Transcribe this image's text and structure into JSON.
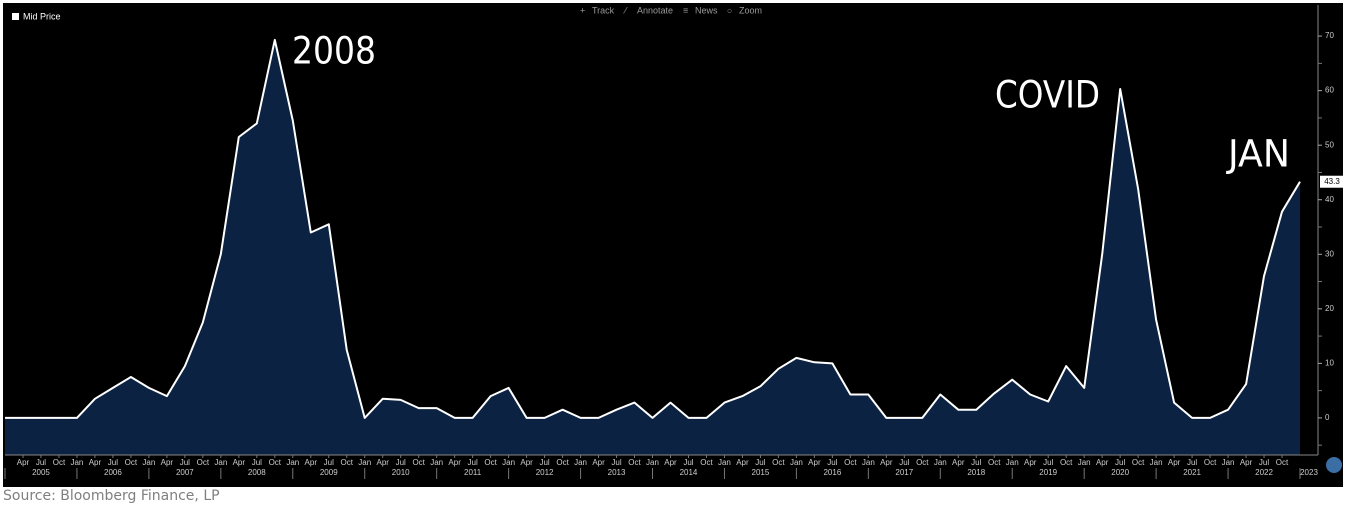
{
  "chart_data": {
    "type": "area",
    "series": [
      {
        "name": "Mid Price",
        "color": "#ffffff",
        "fill": "#0b2242",
        "values": [
          0,
          0,
          0,
          0,
          0,
          3.5,
          5.5,
          7.5,
          5.5,
          4,
          9.5,
          17.5,
          30,
          51.5,
          54,
          69.3,
          54.5,
          34,
          35.5,
          12.5,
          0,
          3.5,
          3.3,
          1.8,
          1.8,
          0,
          0,
          4,
          5.5,
          0,
          0,
          1.5,
          0,
          0,
          1.5,
          2.8,
          0,
          2.8,
          0,
          0,
          2.8,
          4,
          5.8,
          9,
          11,
          10.2,
          10,
          4.3,
          4.3,
          0,
          0,
          0,
          4.3,
          1.5,
          1.5,
          4.5,
          7,
          4.3,
          3,
          9.5,
          5.5,
          30,
          60.3,
          42,
          18,
          2.8,
          0,
          0,
          1.5,
          6.2,
          26,
          37.8,
          43.3
        ]
      }
    ],
    "x": [
      2005,
      2005.25,
      2005.5,
      2005.75,
      2006,
      2006.25,
      2006.5,
      2006.75,
      2007,
      2007.25,
      2007.5,
      2007.75,
      2008,
      2008.25,
      2008.5,
      2008.75,
      2009,
      2009.25,
      2009.5,
      2009.75,
      2010,
      2010.25,
      2010.5,
      2010.75,
      2011,
      2011.25,
      2011.5,
      2011.75,
      2012,
      2012.25,
      2012.5,
      2012.75,
      2013,
      2013.25,
      2013.5,
      2013.75,
      2014,
      2014.25,
      2014.5,
      2014.75,
      2015,
      2015.25,
      2015.5,
      2015.75,
      2016,
      2016.25,
      2016.5,
      2016.75,
      2017,
      2017.25,
      2017.5,
      2017.75,
      2018,
      2018.25,
      2018.5,
      2018.75,
      2019,
      2019.25,
      2019.5,
      2019.75,
      2020,
      2020.25,
      2020.5,
      2020.75,
      2021,
      2021.25,
      2021.5,
      2021.75,
      2022,
      2022.25,
      2022.5,
      2022.75,
      2023
    ],
    "xlim": [
      2005,
      2023.25
    ],
    "ylim": [
      -6.8,
      75.7
    ],
    "yticks": [
      0,
      10,
      20,
      30,
      40,
      50,
      60,
      70
    ],
    "yminorticks": [
      -5,
      5,
      15,
      25,
      35,
      45,
      55,
      65
    ],
    "xticks": [
      {
        "value": 2005.25,
        "label": "Apr"
      },
      {
        "value": 2005.5,
        "label": "Jul"
      },
      {
        "value": 2005.75,
        "label": "Oct"
      },
      {
        "value": 2006,
        "label": "Jan"
      },
      {
        "value": 2006.25,
        "label": "Apr"
      },
      {
        "value": 2006.5,
        "label": "Jul"
      },
      {
        "value": 2006.75,
        "label": "Oct"
      },
      {
        "value": 2007,
        "label": "Jan"
      },
      {
        "value": 2007.25,
        "label": "Apr"
      },
      {
        "value": 2007.5,
        "label": "Jul"
      },
      {
        "value": 2007.75,
        "label": "Oct"
      },
      {
        "value": 2008,
        "label": "Jan"
      },
      {
        "value": 2008.25,
        "label": "Apr"
      },
      {
        "value": 2008.5,
        "label": "Jul"
      },
      {
        "value": 2008.75,
        "label": "Oct"
      },
      {
        "value": 2009,
        "label": "Jan"
      },
      {
        "value": 2009.25,
        "label": "Apr"
      },
      {
        "value": 2009.5,
        "label": "Jul"
      },
      {
        "value": 2009.75,
        "label": "Oct"
      },
      {
        "value": 2010,
        "label": "Jan"
      },
      {
        "value": 2010.25,
        "label": "Apr"
      },
      {
        "value": 2010.5,
        "label": "Jul"
      },
      {
        "value": 2010.75,
        "label": "Oct"
      },
      {
        "value": 2011,
        "label": "Jan"
      },
      {
        "value": 2011.25,
        "label": "Apr"
      },
      {
        "value": 2011.5,
        "label": "Jul"
      },
      {
        "value": 2011.75,
        "label": "Oct"
      },
      {
        "value": 2012,
        "label": "Jan"
      },
      {
        "value": 2012.25,
        "label": "Apr"
      },
      {
        "value": 2012.5,
        "label": "Jul"
      },
      {
        "value": 2012.75,
        "label": "Oct"
      },
      {
        "value": 2013,
        "label": "Jan"
      },
      {
        "value": 2013.25,
        "label": "Apr"
      },
      {
        "value": 2013.5,
        "label": "Jul"
      },
      {
        "value": 2013.75,
        "label": "Oct"
      },
      {
        "value": 2014,
        "label": "Jan"
      },
      {
        "value": 2014.25,
        "label": "Apr"
      },
      {
        "value": 2014.5,
        "label": "Jul"
      },
      {
        "value": 2014.75,
        "label": "Oct"
      },
      {
        "value": 2015,
        "label": "Jan"
      },
      {
        "value": 2015.25,
        "label": "Apr"
      },
      {
        "value": 2015.5,
        "label": "Jul"
      },
      {
        "value": 2015.75,
        "label": "Oct"
      },
      {
        "value": 2016,
        "label": "Jan"
      },
      {
        "value": 2016.25,
        "label": "Apr"
      },
      {
        "value": 2016.5,
        "label": "Jul"
      },
      {
        "value": 2016.75,
        "label": "Oct"
      },
      {
        "value": 2017,
        "label": "Jan"
      },
      {
        "value": 2017.25,
        "label": "Apr"
      },
      {
        "value": 2017.5,
        "label": "Jul"
      },
      {
        "value": 2017.75,
        "label": "Oct"
      },
      {
        "value": 2018,
        "label": "Jan"
      },
      {
        "value": 2018.25,
        "label": "Apr"
      },
      {
        "value": 2018.5,
        "label": "Jul"
      },
      {
        "value": 2018.75,
        "label": "Oct"
      },
      {
        "value": 2019,
        "label": "Jan"
      },
      {
        "value": 2019.25,
        "label": "Apr"
      },
      {
        "value": 2019.5,
        "label": "Jul"
      },
      {
        "value": 2019.75,
        "label": "Oct"
      },
      {
        "value": 2020,
        "label": "Jan"
      },
      {
        "value": 2020.25,
        "label": "Apr"
      },
      {
        "value": 2020.5,
        "label": "Jul"
      },
      {
        "value": 2020.75,
        "label": "Oct"
      },
      {
        "value": 2021,
        "label": "Jan"
      },
      {
        "value": 2021.25,
        "label": "Apr"
      },
      {
        "value": 2021.5,
        "label": "Jul"
      },
      {
        "value": 2021.75,
        "label": "Oct"
      },
      {
        "value": 2022,
        "label": "Jan"
      },
      {
        "value": 2022.25,
        "label": "Apr"
      },
      {
        "value": 2022.5,
        "label": "Jul"
      },
      {
        "value": 2022.75,
        "label": "Oct"
      }
    ],
    "year_ticks": [
      2005,
      2006,
      2007,
      2008,
      2009,
      2010,
      2011,
      2012,
      2013,
      2014,
      2015,
      2016,
      2017,
      2018,
      2019,
      2020,
      2021,
      2022,
      2023
    ],
    "annotations": [
      "2008",
      "COVID",
      "JAN"
    ]
  },
  "toolbar": [
    "Track",
    "Annotate",
    "News",
    "Zoom"
  ],
  "source": "Source: Bloomberg Finance, LP"
}
